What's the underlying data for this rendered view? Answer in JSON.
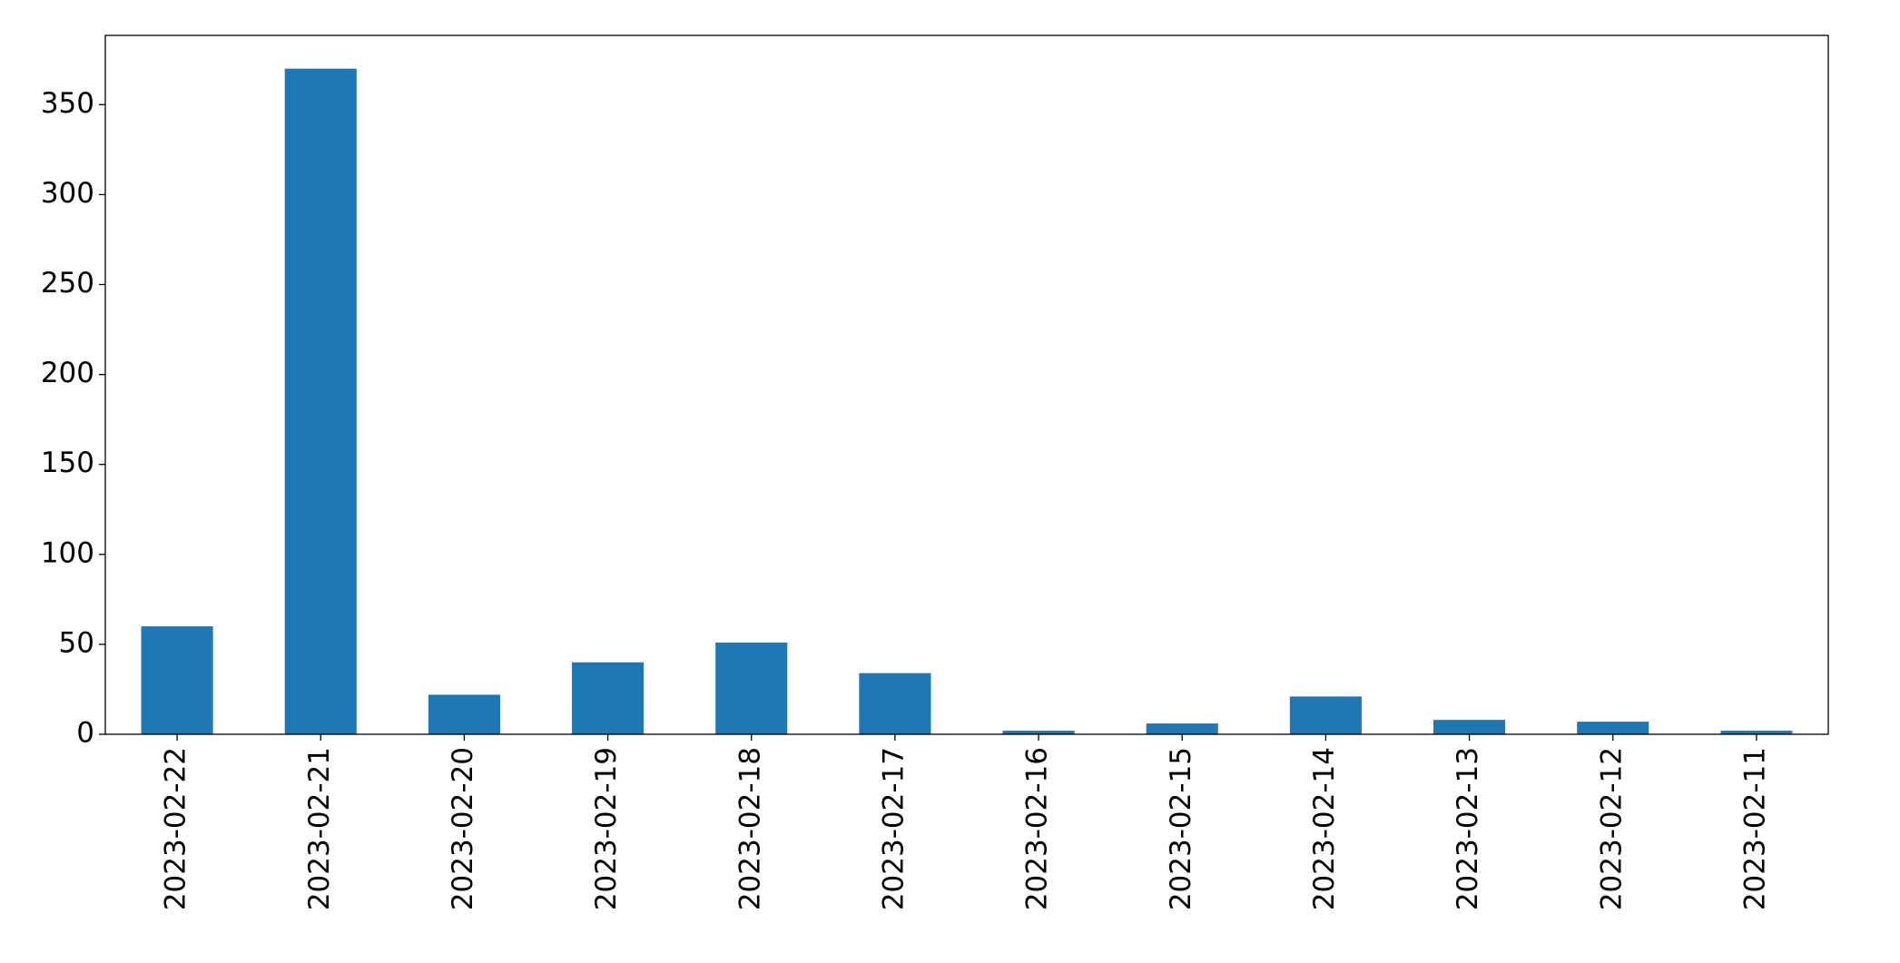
{
  "chart_data": {
    "type": "bar",
    "categories": [
      "2023-02-22",
      "2023-02-21",
      "2023-02-20",
      "2023-02-19",
      "2023-02-18",
      "2023-02-17",
      "2023-02-16",
      "2023-02-15",
      "2023-02-14",
      "2023-02-13",
      "2023-02-12",
      "2023-02-11"
    ],
    "values": [
      60,
      370,
      22,
      40,
      51,
      34,
      2,
      6,
      21,
      8,
      7,
      2
    ],
    "color": "#1f77b4",
    "ylim": [
      0,
      388.5
    ],
    "yticks": [
      0,
      50,
      100,
      150,
      200,
      250,
      300,
      350
    ],
    "grid": false
  }
}
